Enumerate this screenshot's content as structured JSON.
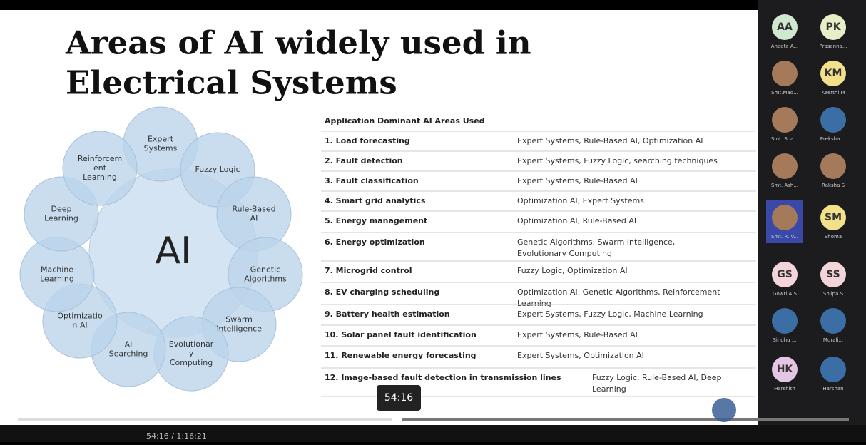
{
  "slide": {
    "title_lines": [
      "Areas of AI widely used in",
      "Electrical Systems"
    ],
    "diagram": {
      "center": "AI",
      "petals": [
        [
          "Expert",
          "Systems"
        ],
        [
          "Fuzzy Logic"
        ],
        [
          "Rule-Based",
          "AI"
        ],
        [
          "Genetic",
          "Algorithms"
        ],
        [
          "Swarm",
          "Intelligence"
        ],
        [
          "Evolutionar",
          "y",
          "Computing"
        ],
        [
          "AI",
          "Searching"
        ],
        [
          "Optimizatio",
          "n AI"
        ],
        [
          "Machine",
          "Learning"
        ],
        [
          "Deep",
          "Learning"
        ],
        [
          "Reinforcem",
          "ent",
          "Learning"
        ]
      ]
    },
    "table": {
      "header": "Application Dominant AI Areas Used",
      "rows": [
        [
          "1. Load forecasting",
          [
            "Expert Systems, Rule-Based AI, Optimization AI"
          ]
        ],
        [
          "2. Fault detection",
          [
            "Expert Systems, Fuzzy Logic, searching techniques"
          ]
        ],
        [
          "3. Fault classification",
          [
            "Expert Systems, Rule-Based AI"
          ]
        ],
        [
          "4. Smart grid analytics",
          [
            "Optimization AI, Expert Systems"
          ]
        ],
        [
          "5. Energy management",
          [
            "Optimization AI, Rule-Based AI"
          ]
        ],
        [
          "6. Energy optimization",
          [
            "Genetic Algorithms, Swarm Intelligence,",
            "Evolutionary Computing"
          ]
        ],
        [
          "7. Microgrid control",
          [
            "Fuzzy Logic, Optimization AI"
          ]
        ],
        [
          "8. EV charging scheduling",
          [
            "Optimization AI, Genetic Algorithms, Reinforcement",
            "Learning"
          ]
        ],
        [
          "9. Battery health estimation",
          [
            "Expert Systems, Fuzzy Logic, Machine Learning"
          ]
        ],
        [
          "10. Solar panel fault identification",
          [
            "Expert Systems, Rule-Based AI"
          ]
        ],
        [
          "11. Renewable energy forecasting",
          [
            "Expert Systems, Optimization AI"
          ]
        ],
        [
          "12. Image-based fault detection in transmission lines",
          [
            "Fuzzy Logic, Rule-Based AI, Deep",
            "Learning"
          ]
        ]
      ]
    }
  },
  "participants": [
    {
      "initials": "AA",
      "name": "Aneeta A..."
    },
    {
      "initials": "PK",
      "name": "Prasanna..."
    },
    {
      "initials": null,
      "name": "Smt.Mad..."
    },
    {
      "initials": "KM",
      "name": "Keerthi M"
    },
    {
      "initials": null,
      "name": "Smt. Sha..."
    },
    {
      "initials": null,
      "name": "Preksha ..."
    },
    {
      "initials": null,
      "name": "Smt. Ash..."
    },
    {
      "initials": null,
      "name": "Raksha S"
    },
    {
      "initials": null,
      "name": "Smt. R. V..."
    },
    {
      "initials": "SM",
      "name": "Shoma"
    },
    {
      "initials": "GS",
      "name": "Gowri A S"
    },
    {
      "initials": "SS",
      "name": "Shilpa S"
    },
    {
      "initials": null,
      "name": "Sindhu ..."
    },
    {
      "initials": null,
      "name": "Murali..."
    },
    {
      "initials": "HK",
      "name": "Harshith"
    },
    {
      "initials": null,
      "name": "Harshan"
    }
  ],
  "player": {
    "tooltip": "54:16",
    "elapsed": "54:16 / 1:16:21"
  }
}
